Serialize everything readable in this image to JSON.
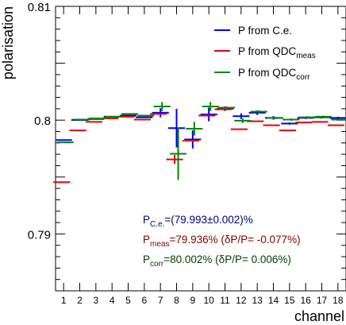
{
  "chart_data": {
    "type": "scatter",
    "xlabel": "channel",
    "ylabel": "polarisation",
    "ylim": [
      0.785,
      0.81
    ],
    "yticks": [
      0.79,
      0.8,
      0.81
    ],
    "ytick_labels": [
      "0.79",
      "0.8",
      "0.81"
    ],
    "x": [
      1,
      2,
      3,
      4,
      5,
      6,
      7,
      8,
      9,
      10,
      11,
      12,
      13,
      14,
      15,
      16,
      17,
      18
    ],
    "xtick_labels": [
      "1",
      "2",
      "3",
      "4",
      "5",
      "6",
      "7",
      "8",
      "9",
      "10",
      "11",
      "12",
      "13",
      "14",
      "15",
      "16",
      "17",
      "18"
    ],
    "legend_position": "top-right",
    "series": [
      {
        "name": "P from C.e.",
        "color": "#0000ee",
        "values": [
          0.79825,
          0.80001,
          0.8001,
          0.8003,
          0.8004,
          0.80025,
          0.80065,
          0.7993,
          0.7983,
          0.8005,
          0.801,
          0.80035,
          0.80065,
          0.8002,
          0.7997,
          0.8002,
          0.80025,
          0.8002
        ],
        "errors": [
          5e-05,
          2e-05,
          2e-05,
          2e-05,
          2e-05,
          2e-05,
          0.0004,
          0.0017,
          0.0008,
          0.0006,
          0.0002,
          0.00025,
          0.0002,
          0.00015,
          0.0001,
          0.0001,
          0.0001,
          0.0001
        ]
      },
      {
        "name": "P from QDC_meas",
        "color": "#ee0000",
        "values": [
          0.79455,
          0.7991,
          0.79985,
          0.80015,
          0.8003,
          0.80005,
          0.80055,
          0.79655,
          0.7982,
          0.8004,
          0.80095,
          0.7992,
          0.7999,
          0.79955,
          0.7991,
          0.7998,
          0.79985,
          0.79955
        ],
        "errors": [
          2e-05,
          2e-05,
          2e-05,
          2e-05,
          2e-05,
          2e-05,
          4e-05,
          0.0004,
          4e-05,
          4e-05,
          4e-05,
          4e-05,
          4e-05,
          4e-05,
          4e-05,
          4e-05,
          4e-05,
          4e-05
        ]
      },
      {
        "name": "P from QDC_corr",
        "color": "#008800",
        "values": [
          0.79805,
          0.80005,
          0.80015,
          0.8003,
          0.80055,
          0.8004,
          0.8012,
          0.79705,
          0.79925,
          0.8012,
          0.8011,
          0.79995,
          0.80075,
          0.8002,
          0.80005,
          0.80025,
          0.8003,
          0.80005
        ],
        "errors": [
          3e-05,
          2e-05,
          2e-05,
          2e-05,
          2e-05,
          3e-05,
          0.0004,
          0.0023,
          0.0006,
          0.0004,
          0.0001,
          0.0002,
          0.0001,
          0.0001,
          0.0001,
          0.0001,
          0.0001,
          0.0001
        ]
      }
    ],
    "legend": [
      {
        "main": "P from QDC",
        "sub": ""
      },
      {
        "main": "P from QDC",
        "sub": "meas"
      },
      {
        "main": "P from QDC",
        "sub": "corr"
      }
    ],
    "legend_first_label": "P from C.e.",
    "annotations": [
      {
        "p": "P",
        "sub": "C.e.",
        "rest": "=(79.993±0.002)%",
        "color": "#000080"
      },
      {
        "p": "P",
        "sub": "meas",
        "rest": "=79.936%  (δP/P= -0.077%)",
        "color": "#800000"
      },
      {
        "p": "P",
        "sub": "corr",
        "rest": "=80.002%   (δP/P=  0.006%)",
        "color": "#004000"
      }
    ]
  }
}
